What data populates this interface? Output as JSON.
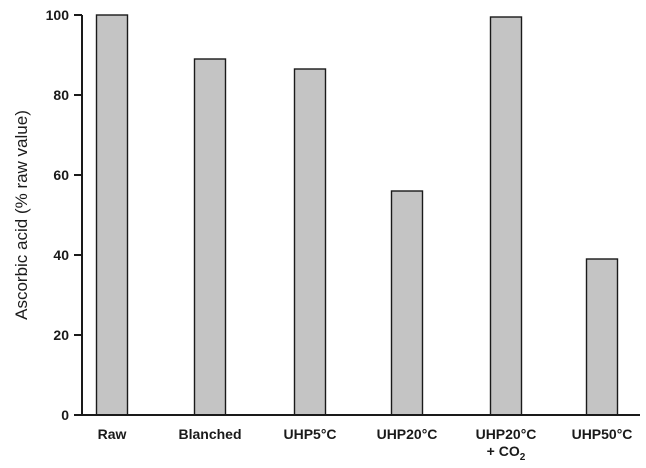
{
  "chart_data": {
    "type": "bar",
    "categories": [
      {
        "label": "Raw",
        "label_line2": "",
        "label_sub": ""
      },
      {
        "label": "Blanched",
        "label_line2": "",
        "label_sub": ""
      },
      {
        "label": "UHP5°C",
        "label_line2": "",
        "label_sub": ""
      },
      {
        "label": "UHP20°C",
        "label_line2": "",
        "label_sub": ""
      },
      {
        "label": "UHP20°C",
        "label_line2": "+ CO",
        "label_sub": "2"
      },
      {
        "label": "UHP50°C",
        "label_line2": "",
        "label_sub": ""
      }
    ],
    "values": [
      100,
      89,
      86.5,
      56,
      99.5,
      39
    ],
    "title": "",
    "xlabel": "",
    "ylabel": "Ascorbic acid (% raw value)",
    "ylim": [
      0,
      100
    ],
    "yticks": [
      "0",
      "20",
      "40",
      "60",
      "80",
      "100"
    ],
    "grid": false,
    "legend": "none",
    "bar_color": "#c4c4c4",
    "line_color": "#1a1a1a"
  }
}
